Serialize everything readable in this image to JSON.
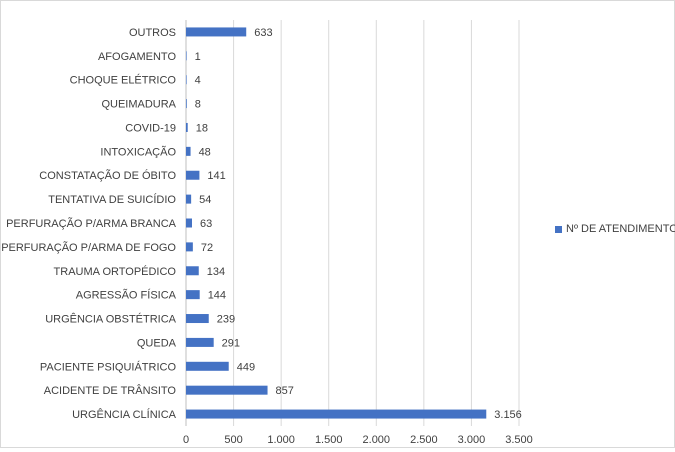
{
  "chart_data": {
    "type": "bar",
    "orientation": "horizontal",
    "categories": [
      "OUTROS",
      "AFOGAMENTO",
      "CHOQUE ELÉTRICO",
      "QUEIMADURA",
      "COVID-19",
      "INTOXICAÇÃO",
      "CONSTATAÇÃO DE ÓBITO",
      "TENTATIVA DE SUICÍDIO",
      "PERFURAÇÃO P/ARMA BRANCA",
      "PERFURAÇÃO P/ARMA DE FOGO",
      "TRAUMA ORTOPÉDICO",
      "AGRESSÃO FÍSICA",
      "URGÊNCIA OBSTÉTRICA",
      "QUEDA",
      "PACIENTE PSIQUIÁTRICO",
      "ACIDENTE DE TRÂNSITO",
      "URGÊNCIA CLÍNICA"
    ],
    "series": [
      {
        "name": "Nº DE ATENDIMENTO",
        "color": "#4472c4",
        "values": [
          633,
          1,
          4,
          8,
          18,
          48,
          141,
          54,
          63,
          72,
          134,
          144,
          239,
          291,
          449,
          857,
          3156
        ],
        "value_labels": [
          "633",
          "1",
          "4",
          "8",
          "18",
          "48",
          "141",
          "54",
          "63",
          "72",
          "134",
          "144",
          "239",
          "291",
          "449",
          "857",
          "3.156"
        ]
      }
    ],
    "xlim": [
      0,
      3500
    ],
    "x_ticks": [
      0,
      500,
      1000,
      1500,
      2000,
      2500,
      3000,
      3500
    ],
    "x_tick_labels": [
      "0",
      "500",
      "1.000",
      "1.500",
      "2.000",
      "2.500",
      "3.000",
      "3.500"
    ],
    "grid": true,
    "legend_position": "right",
    "title": "",
    "xlabel": "",
    "ylabel": ""
  }
}
